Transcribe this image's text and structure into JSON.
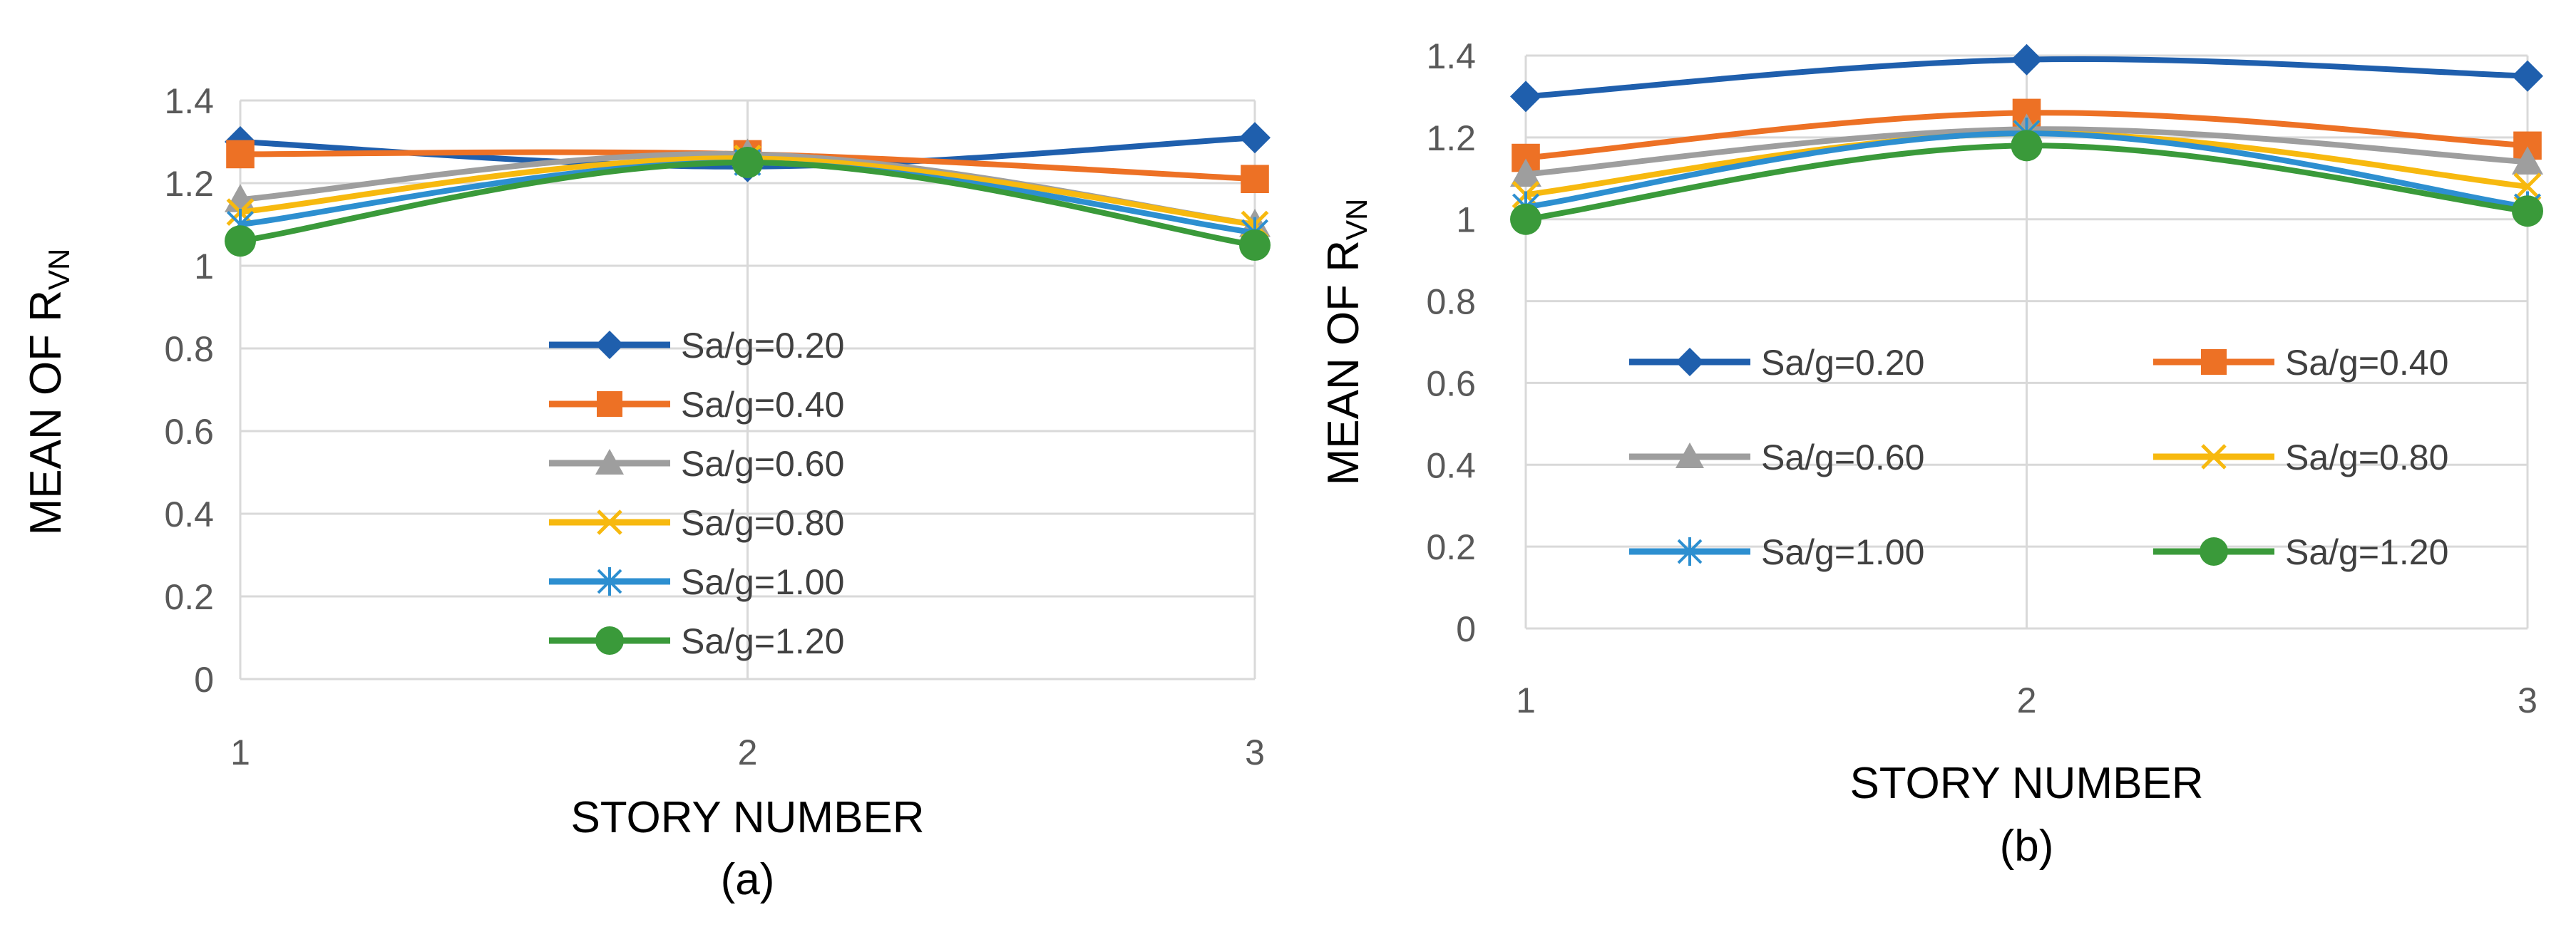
{
  "chart_data": [
    {
      "type": "line",
      "panel_label": "(a)",
      "xlabel": "STORY NUMBER",
      "ylabel_main": "MEAN OF R",
      "ylabel_sub": "VN",
      "categories": [
        "1",
        "2",
        "3"
      ],
      "ylim": [
        0,
        1.4
      ],
      "y_ticks": [
        "0",
        "0.2",
        "0.4",
        "0.6",
        "0.8",
        "1",
        "1.2",
        "1.4"
      ],
      "grid": true,
      "legend_placement": "center",
      "series": [
        {
          "name": "Sa/g=0.20",
          "values": [
            1.3,
            1.24,
            1.31
          ],
          "color": "#1F5FAD",
          "marker": "diamond"
        },
        {
          "name": "Sa/g=0.40",
          "values": [
            1.27,
            1.27,
            1.21
          ],
          "color": "#ED7125",
          "marker": "square"
        },
        {
          "name": "Sa/g=0.60",
          "values": [
            1.16,
            1.27,
            1.1
          ],
          "color": "#9E9E9E",
          "marker": "triangle"
        },
        {
          "name": "Sa/g=0.80",
          "values": [
            1.13,
            1.26,
            1.1
          ],
          "color": "#F7B90F",
          "marker": "x"
        },
        {
          "name": "Sa/g=1.00",
          "values": [
            1.1,
            1.25,
            1.08
          ],
          "color": "#2D8FD0",
          "marker": "star"
        },
        {
          "name": "Sa/g=1.20",
          "values": [
            1.06,
            1.25,
            1.05
          ],
          "color": "#3A9A3A",
          "marker": "circle"
        }
      ]
    },
    {
      "type": "line",
      "panel_label": "(b)",
      "xlabel": "STORY NUMBER",
      "ylabel_main": "MEAN OF R",
      "ylabel_sub": "VN",
      "categories": [
        "1",
        "2",
        "3"
      ],
      "ylim": [
        0,
        1.4
      ],
      "y_ticks": [
        "0",
        "0.2",
        "0.4",
        "0.6",
        "0.8",
        "1",
        "1.2",
        "1.4"
      ],
      "grid": true,
      "legend_placement": "center",
      "series": [
        {
          "name": "Sa/g=0.20",
          "values": [
            1.3,
            1.39,
            1.35
          ],
          "color": "#1F5FAD",
          "marker": "diamond"
        },
        {
          "name": "Sa/g=0.40",
          "values": [
            1.15,
            1.26,
            1.18
          ],
          "color": "#ED7125",
          "marker": "square"
        },
        {
          "name": "Sa/g=0.60",
          "values": [
            1.11,
            1.22,
            1.14
          ],
          "color": "#9E9E9E",
          "marker": "triangle"
        },
        {
          "name": "Sa/g=0.80",
          "values": [
            1.06,
            1.21,
            1.08
          ],
          "color": "#F7B90F",
          "marker": "x"
        },
        {
          "name": "Sa/g=1.00",
          "values": [
            1.03,
            1.21,
            1.03
          ],
          "color": "#2D8FD0",
          "marker": "star"
        },
        {
          "name": "Sa/g=1.20",
          "values": [
            1.0,
            1.18,
            1.02
          ],
          "color": "#3A9A3A",
          "marker": "circle"
        }
      ]
    }
  ]
}
